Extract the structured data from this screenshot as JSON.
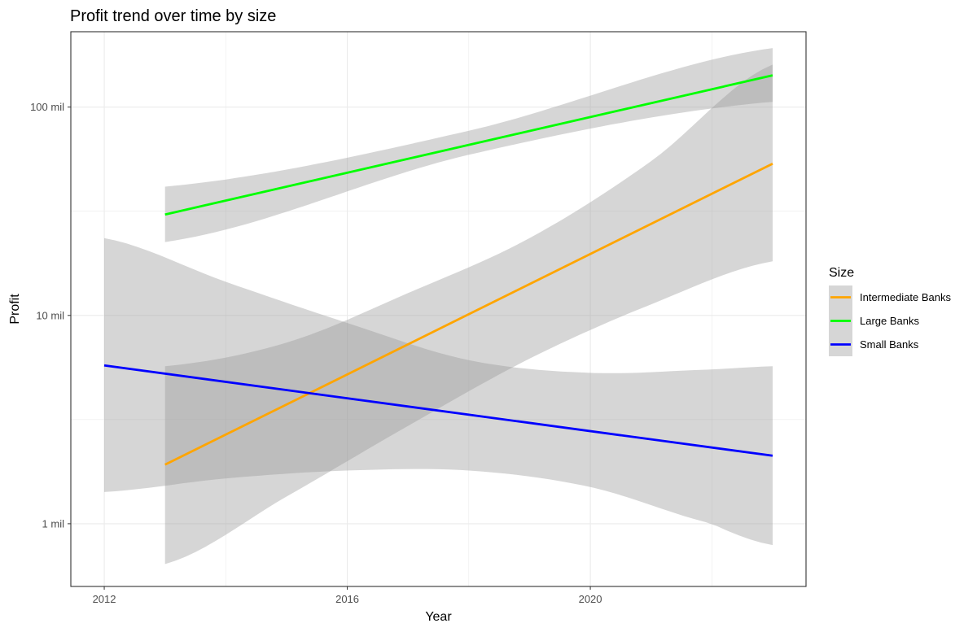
{
  "chart_data": {
    "type": "line",
    "title": "Profit trend over time by size",
    "xlabel": "Year",
    "ylabel": "Profit",
    "x_scale": "linear",
    "y_scale": "log10",
    "xlim": [
      2011.45,
      2023.55
    ],
    "ylim": [
      0.5,
      230
    ],
    "x_ticks": [
      {
        "value": 2012,
        "label": "2012"
      },
      {
        "value": 2016,
        "label": "2016"
      },
      {
        "value": 2020,
        "label": "2020"
      }
    ],
    "x_minor_ticks": [
      2014,
      2018,
      2022
    ],
    "y_ticks": [
      {
        "value": 1,
        "label": "1 mil"
      },
      {
        "value": 10,
        "label": "10 mil"
      },
      {
        "value": 100,
        "label": "100 mil"
      }
    ],
    "y_minor_ticks": [
      3.162,
      31.62
    ],
    "grid": true,
    "legend": {
      "title": "Size",
      "position": "right"
    },
    "band_color": "#999999",
    "series": [
      {
        "name": "Intermediate Banks",
        "color": "#FFA500",
        "x": [
          2013,
          2023
        ],
        "values": [
          1.92,
          53.5
        ],
        "ci_x": [
          2013,
          2015,
          2017,
          2019,
          2021,
          2023
        ],
        "ci_lower": [
          0.64,
          1.35,
          2.95,
          6.2,
          11.3,
          18.2
        ],
        "ci_upper": [
          5.7,
          7.4,
          12.8,
          23.5,
          55.0,
          160.0
        ]
      },
      {
        "name": "Large Banks",
        "color": "#00FF00",
        "x": [
          2013,
          2023
        ],
        "values": [
          30.5,
          142.0
        ],
        "ci_x": [
          2013,
          2018,
          2023
        ],
        "ci_lower": [
          22.5,
          59.0,
          106.0
        ],
        "ci_upper": [
          41.5,
          77.0,
          192.0
        ]
      },
      {
        "name": "Small Banks",
        "color": "#0000FF",
        "x": [
          2012,
          2023
        ],
        "values": [
          5.75,
          2.12
        ],
        "ci_x": [
          2012,
          2014,
          2016,
          2018,
          2020,
          2022,
          2023
        ],
        "ci_lower": [
          1.42,
          1.65,
          1.8,
          1.8,
          1.5,
          1.0,
          0.79
        ],
        "ci_upper": [
          23.5,
          14.5,
          9.2,
          6.1,
          5.3,
          5.5,
          5.7
        ]
      }
    ]
  }
}
